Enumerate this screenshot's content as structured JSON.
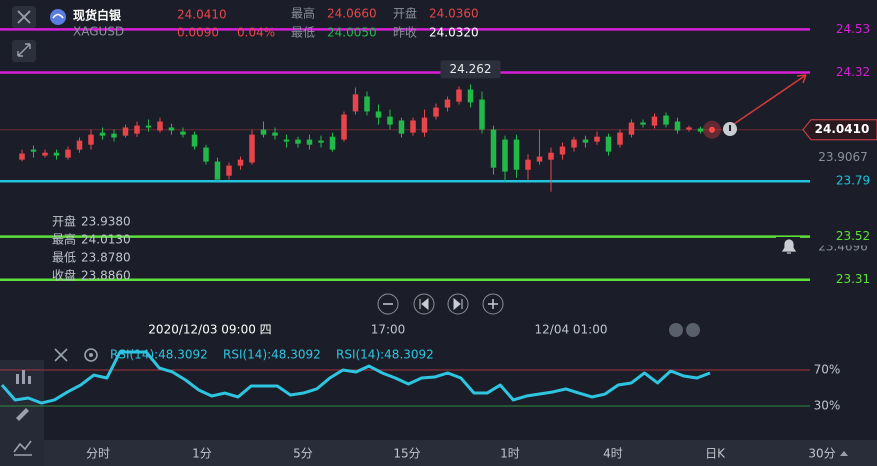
{
  "header": {
    "name": "现货白银",
    "code": "XAGUSD",
    "price": "24.0410",
    "change": "0.0090",
    "change_pct": "0.04%",
    "stats": [
      {
        "label": "最高",
        "value": "24.0660"
      },
      {
        "label": "开盘",
        "value": "24.0360"
      },
      {
        "label": "最低",
        "value": "24.0050"
      },
      {
        "label": "昨收",
        "value": "24.0320"
      }
    ]
  },
  "chart_data": [
    {
      "type": "candlestick",
      "open": [
        23.895,
        23.944,
        23.915,
        23.929,
        23.905,
        23.944,
        23.968,
        24.027,
        24.022,
        24.012,
        24.022,
        24.061,
        24.037,
        24.052,
        24.032,
        24.017,
        23.954,
        23.886,
        23.817,
        23.866,
        23.881,
        24.042,
        24.027,
        23.993,
        23.993,
        23.993,
        23.988,
        24.007,
        23.993,
        24.13,
        24.203,
        24.13,
        24.105,
        24.086,
        24.027,
        24.027,
        24.105,
        24.149,
        24.178,
        24.237,
        24.188,
        24.042,
        23.993,
        23.993,
        23.846,
        23.886,
        23.895,
        23.92,
        23.954,
        23.993,
        23.983,
        24.007,
        23.968,
        24.017,
        24.076,
        24.061,
        24.11,
        24.081,
        24.042,
        24.047,
        24.037
      ],
      "high": [
        23.944,
        23.964,
        23.944,
        23.944,
        23.959,
        24.003,
        24.042,
        24.052,
        24.042,
        24.066,
        24.081,
        24.091,
        24.1,
        24.071,
        24.052,
        24.032,
        23.968,
        23.905,
        23.881,
        23.91,
        24.042,
        24.081,
        24.052,
        24.017,
        24.007,
        24.017,
        24.012,
        24.027,
        24.13,
        24.247,
        24.227,
        24.164,
        24.139,
        24.1,
        24.1,
        24.139,
        24.169,
        24.203,
        24.252,
        24.262,
        24.227,
        24.061,
        24.012,
        24.017,
        23.92,
        24.042,
        23.954,
        23.978,
        24.007,
        24.012,
        24.032,
        24.022,
        24.042,
        24.091,
        24.091,
        24.12,
        24.125,
        24.1,
        24.061,
        24.056,
        24.052
      ],
      "low": [
        23.886,
        23.905,
        23.905,
        23.895,
        23.895,
        23.929,
        23.944,
        23.993,
        23.983,
        24.003,
        24.007,
        24.032,
        24.027,
        24.017,
        24.003,
        23.944,
        23.871,
        23.788,
        23.798,
        23.846,
        23.871,
        24.003,
        23.993,
        23.954,
        23.954,
        23.944,
        23.954,
        23.934,
        23.983,
        24.115,
        24.11,
        24.066,
        24.042,
        24.003,
        24.012,
        24.007,
        24.091,
        24.13,
        24.164,
        24.149,
        24.022,
        23.822,
        23.788,
        23.807,
        23.798,
        23.871,
        23.739,
        23.895,
        23.934,
        23.954,
        23.968,
        23.915,
        23.954,
        24.003,
        24.052,
        24.047,
        24.052,
        24.022,
        24.032,
        24.022,
        24.032
      ],
      "close": [
        23.925,
        23.934,
        23.929,
        23.915,
        23.944,
        23.988,
        24.017,
        24.012,
        24.003,
        24.052,
        24.061,
        24.052,
        24.081,
        24.037,
        24.017,
        23.959,
        23.886,
        23.798,
        23.866,
        23.895,
        24.017,
        24.017,
        24.012,
        23.983,
        23.973,
        23.968,
        23.978,
        23.944,
        24.115,
        24.213,
        24.13,
        24.1,
        24.066,
        24.022,
        24.086,
        24.1,
        24.149,
        24.188,
        24.237,
        24.174,
        24.042,
        23.856,
        23.837,
        23.846,
        23.895,
        23.91,
        23.929,
        23.959,
        23.993,
        23.978,
        24.007,
        23.934,
        24.027,
        24.076,
        24.066,
        24.105,
        24.066,
        24.037,
        24.052,
        24.032,
        24.041
      ],
      "up_color": "#e8454a",
      "down_color": "#22b84a",
      "ylim": [
        23.26,
        24.6
      ],
      "yticks": [
        23.9067,
        23.4696
      ],
      "hlines": [
        {
          "value": 24.53,
          "color": "#d61fd6"
        },
        {
          "value": 24.32,
          "color": "#d61fd6"
        },
        {
          "value": 23.79,
          "color": "#22c3dc"
        },
        {
          "value": 23.52,
          "color": "#5ee03a"
        },
        {
          "value": 23.31,
          "color": "#5ee03a"
        }
      ],
      "last": {
        "value": 24.041,
        "label": "24.0410"
      },
      "peak_label": 24.262,
      "ohlc_info": [
        {
          "label": "开盘",
          "value": "23.9380"
        },
        {
          "label": "最高",
          "value": "24.0130"
        },
        {
          "label": "最低",
          "value": "23.8780"
        },
        {
          "label": "收盘",
          "value": "23.8860"
        }
      ],
      "time_labels": [
        "2020/12/03 09:00 四",
        "17:00",
        "12/04 01:00"
      ]
    },
    {
      "type": "line",
      "indicator_labels": [
        "RSI(14):48.3092",
        "RSI(14):48.3092",
        "RSI(14):48.3092"
      ],
      "series": [
        {
          "color": "#2ec5e0",
          "values": [
            53.3,
            36.7,
            38.9,
            33.3,
            36.7,
            45.6,
            53.3,
            64.4,
            61.1,
            90,
            90,
            90,
            72.2,
            67.8,
            58.9,
            47.8,
            41.1,
            44.4,
            40,
            52.2,
            52.2,
            52.2,
            42.2,
            44.4,
            48.9,
            61.1,
            70,
            67.8,
            74.4,
            66.7,
            61.1,
            54.4,
            61.1,
            62.2,
            66.7,
            61.1,
            44.4,
            44.4,
            53.3,
            36.7,
            41.1,
            43.3,
            45.6,
            48.9,
            44.4,
            40,
            43.3,
            53.3,
            55.6,
            66.7,
            55.6,
            68.9,
            63.3,
            61.1,
            66.7
          ]
        }
      ],
      "ylim": [
        -7.8,
        97.8
      ],
      "yticks": [
        {
          "value": 70,
          "label": "70%"
        },
        {
          "value": 30,
          "label": "30%"
        }
      ],
      "tick_colors": [
        "#a8343c",
        "#2f8a3c"
      ]
    }
  ],
  "tabs": [
    "分时",
    "1分",
    "5分",
    "15分",
    "1时",
    "4时",
    "日K",
    "30分"
  ]
}
